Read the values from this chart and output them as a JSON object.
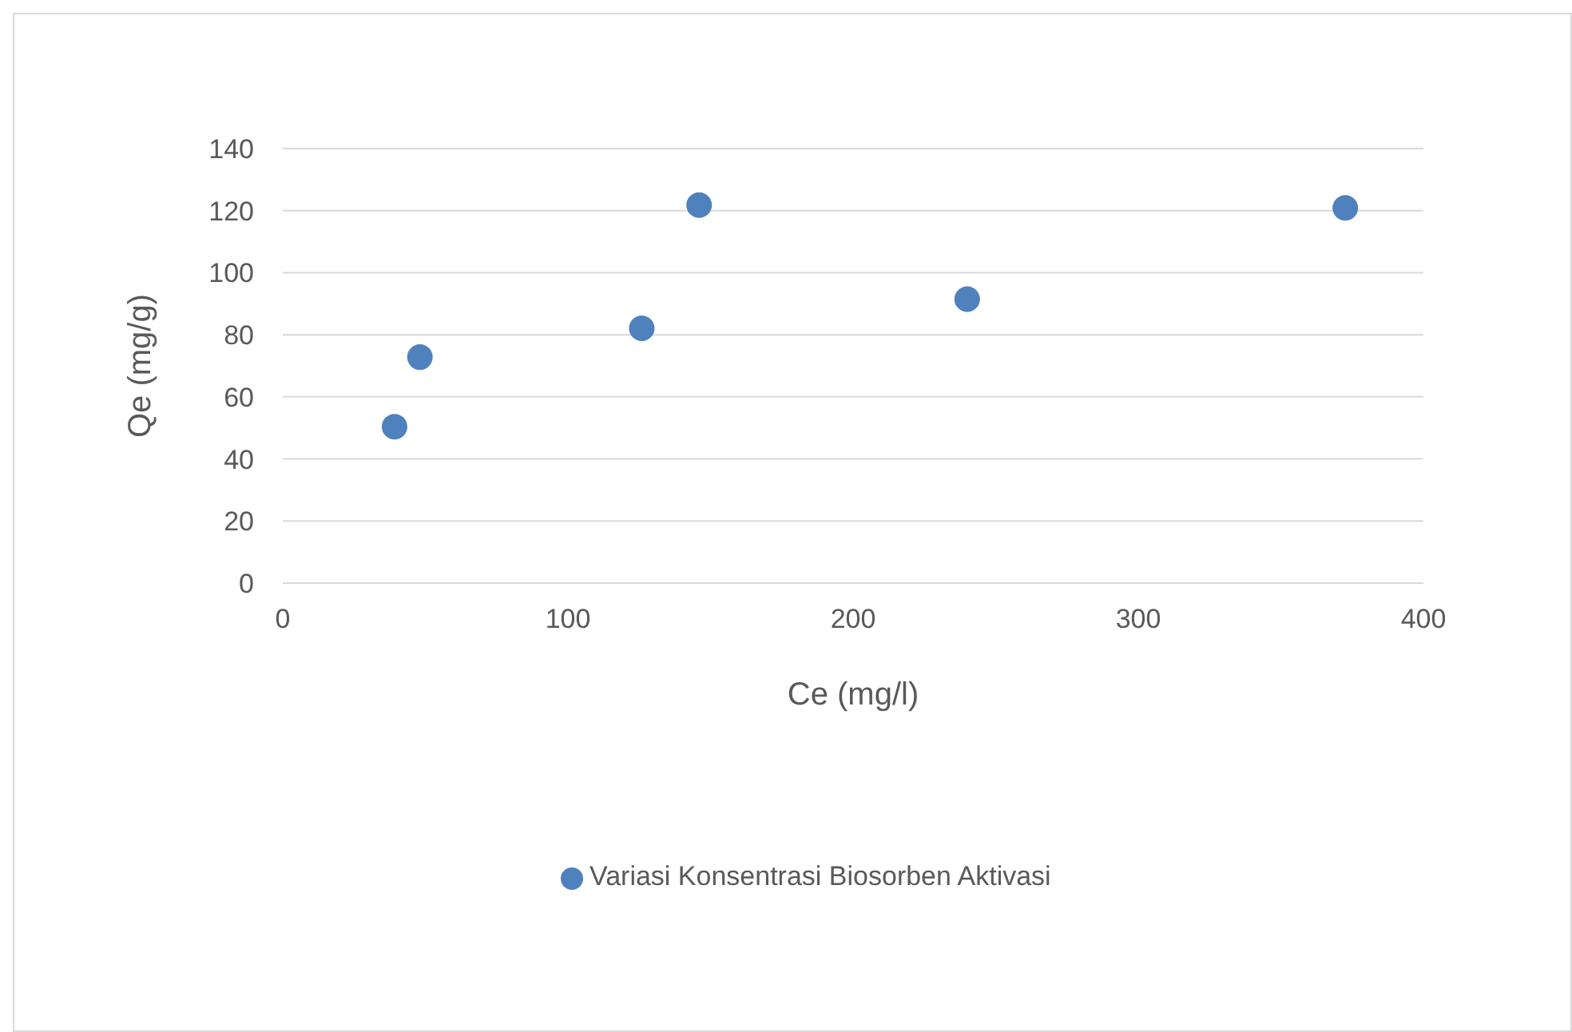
{
  "chart_data": {
    "type": "scatter",
    "xlabel": "Ce (mg/l)",
    "ylabel": "Qe (mg/g)",
    "x": [
      39.2,
      48.1,
      125.9,
      146,
      240,
      372.6
    ],
    "series": [
      {
        "name": "Variasi Konsentrasi Biosorben Aktivasi",
        "color": "#4f81bd",
        "values": [
          50.4,
          72.8,
          82.1,
          121.8,
          91.5,
          120.9
        ]
      }
    ],
    "xlim": [
      0,
      400
    ],
    "xticks": [
      0,
      100,
      200,
      300,
      400
    ],
    "ylim": [
      0,
      140
    ],
    "yticks": [
      0,
      20,
      40,
      60,
      80,
      100,
      120,
      140
    ],
    "grid": "y",
    "legend": "bottom",
    "marker": "circle"
  }
}
